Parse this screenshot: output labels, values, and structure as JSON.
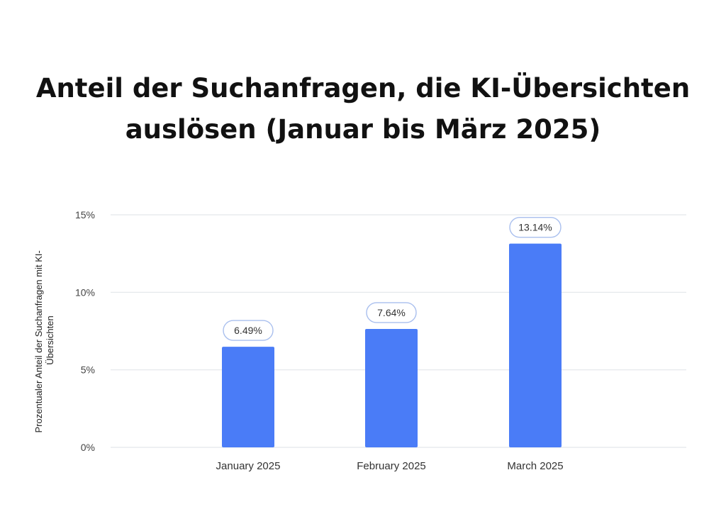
{
  "title_lines": [
    "Anteil der Suchanfragen, die KI-Übersichten",
    "auslösen (Januar bis März 2025)"
  ],
  "chart_data": {
    "type": "bar",
    "title": "Anteil der Suchanfragen, die KI-Übersichten auslösen (Januar bis März 2025)",
    "categories": [
      "January 2025",
      "February 2025",
      "March 2025"
    ],
    "values": [
      6.49,
      7.64,
      13.14
    ],
    "data_labels": [
      "6.49%",
      "7.64%",
      "13.14%"
    ],
    "xlabel": "",
    "ylabel_lines": [
      "Prozentualer Anteil der Suchanfragen mit KI-",
      "Übersichten"
    ],
    "ylim": [
      0,
      15
    ],
    "yticks": [
      0,
      5,
      10,
      15
    ],
    "ytick_labels": [
      "0%",
      "5%",
      "10%",
      "15%"
    ],
    "grid": true,
    "colors": {
      "bar": "#4a7cf7",
      "grid": "#e3e6ea",
      "label_border": "#a9bfee"
    }
  }
}
